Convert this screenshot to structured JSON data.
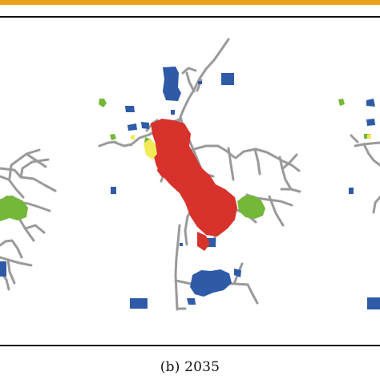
{
  "caption": "(b) 2035",
  "colors": {
    "top_accent": "#e7a21a",
    "frame_border": "#111111",
    "road": "#9a9a9a",
    "blue": "#2f5aa8",
    "green": "#74b83a",
    "red": "#d7322b",
    "yellow": "#f2ea57"
  }
}
